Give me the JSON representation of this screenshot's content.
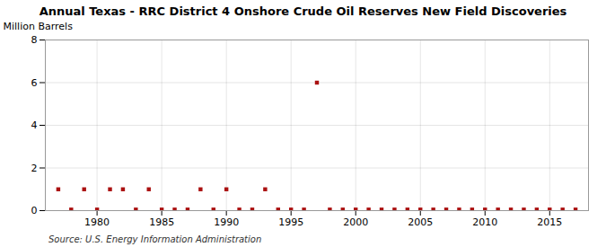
{
  "chart_data": {
    "type": "scatter",
    "title": "Annual Texas - RRC District 4 Onshore Crude Oil Reserves New Field Discoveries",
    "ylabel": "Million Barrels",
    "source": "Source: U.S. Energy Information Administration",
    "color": "#aa1111",
    "marker": "square",
    "x": [
      1977,
      1979,
      1981,
      1982,
      1984,
      1988,
      1990,
      1993,
      1997,
      1978,
      1980,
      1983,
      1985,
      1986,
      1987,
      1989,
      1991,
      1992,
      1994,
      1995,
      1996,
      1998,
      1999,
      2000,
      2001,
      2002,
      2003,
      2004,
      2005,
      2006,
      2007,
      2008,
      2009,
      2010,
      2011,
      2012,
      2013,
      2014,
      2015,
      2016,
      2017
    ],
    "values": [
      1.0,
      1.0,
      1.0,
      1.0,
      1.0,
      1.0,
      1.0,
      1.0,
      6.0,
      0.05,
      0.05,
      0.05,
      0.05,
      0.05,
      0.05,
      0.05,
      0.05,
      0.05,
      0.05,
      0.05,
      0.05,
      0.05,
      0.05,
      0.05,
      0.05,
      0.05,
      0.05,
      0.05,
      0.05,
      0.05,
      0.05,
      0.05,
      0.05,
      0.05,
      0.05,
      0.05,
      0.05,
      0.05,
      0.05,
      0.05,
      0.05
    ],
    "xlim": [
      1976,
      2018
    ],
    "ylim": [
      0,
      8
    ],
    "xticks": [
      1980,
      1985,
      1990,
      1995,
      2000,
      2005,
      2010,
      2015
    ],
    "yticks": [
      0,
      2,
      4,
      6,
      8
    ],
    "grid": true
  }
}
